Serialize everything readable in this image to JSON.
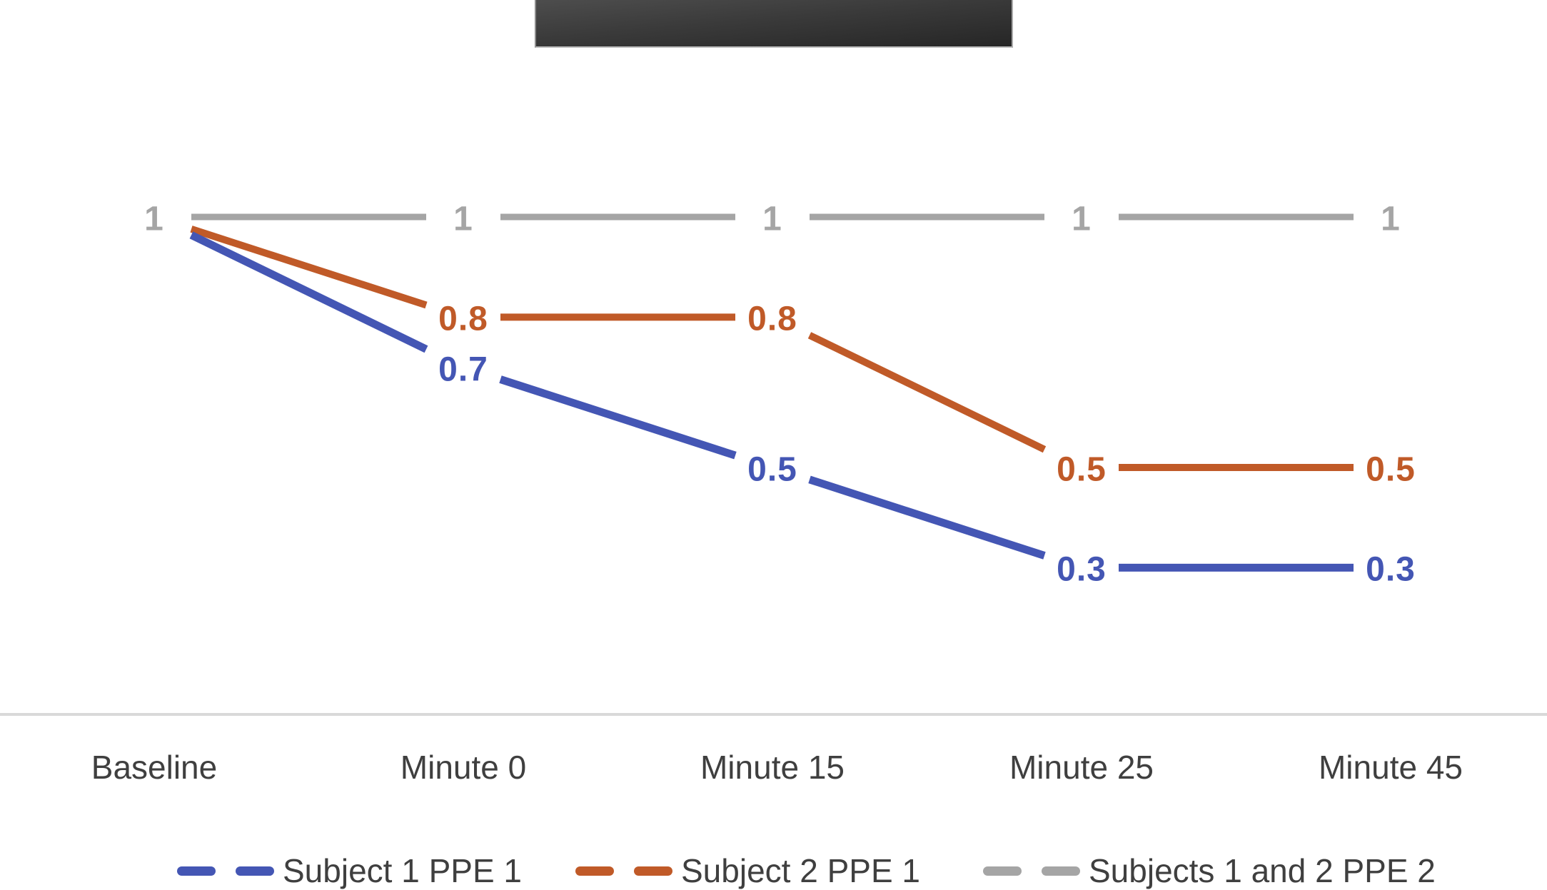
{
  "chart_data": {
    "type": "line",
    "title": "",
    "categories": [
      "Baseline",
      "Minute 0",
      "Minute 15",
      "Minute 25",
      "Minute 45"
    ],
    "series": [
      {
        "name": "Subject 1 PPE 1",
        "color": "#4456B4",
        "values": [
          1,
          0.7,
          0.5,
          0.3,
          0.3
        ],
        "point_labels": [
          "",
          "0.7",
          "0.5",
          "0.3",
          "0.3"
        ]
      },
      {
        "name": "Subject 2 PPE 1",
        "color": "#C05A28",
        "values": [
          1,
          0.8,
          0.8,
          0.5,
          0.5
        ],
        "point_labels": [
          "",
          "0.8",
          "0.8",
          "0.5",
          "0.5"
        ]
      },
      {
        "name": "Subjects 1 and 2 PPE 2",
        "color": "#A5A5A5",
        "values": [
          1,
          1,
          1,
          1,
          1
        ],
        "point_labels": [
          "1",
          "1",
          "1",
          "1",
          "1"
        ]
      }
    ],
    "ylim": [
      0,
      1
    ],
    "grid": false,
    "legend_position": "bottom",
    "axis_line_color": "#D9D9D9",
    "text_color": "#3F3F3F",
    "masked_title_block": true
  }
}
